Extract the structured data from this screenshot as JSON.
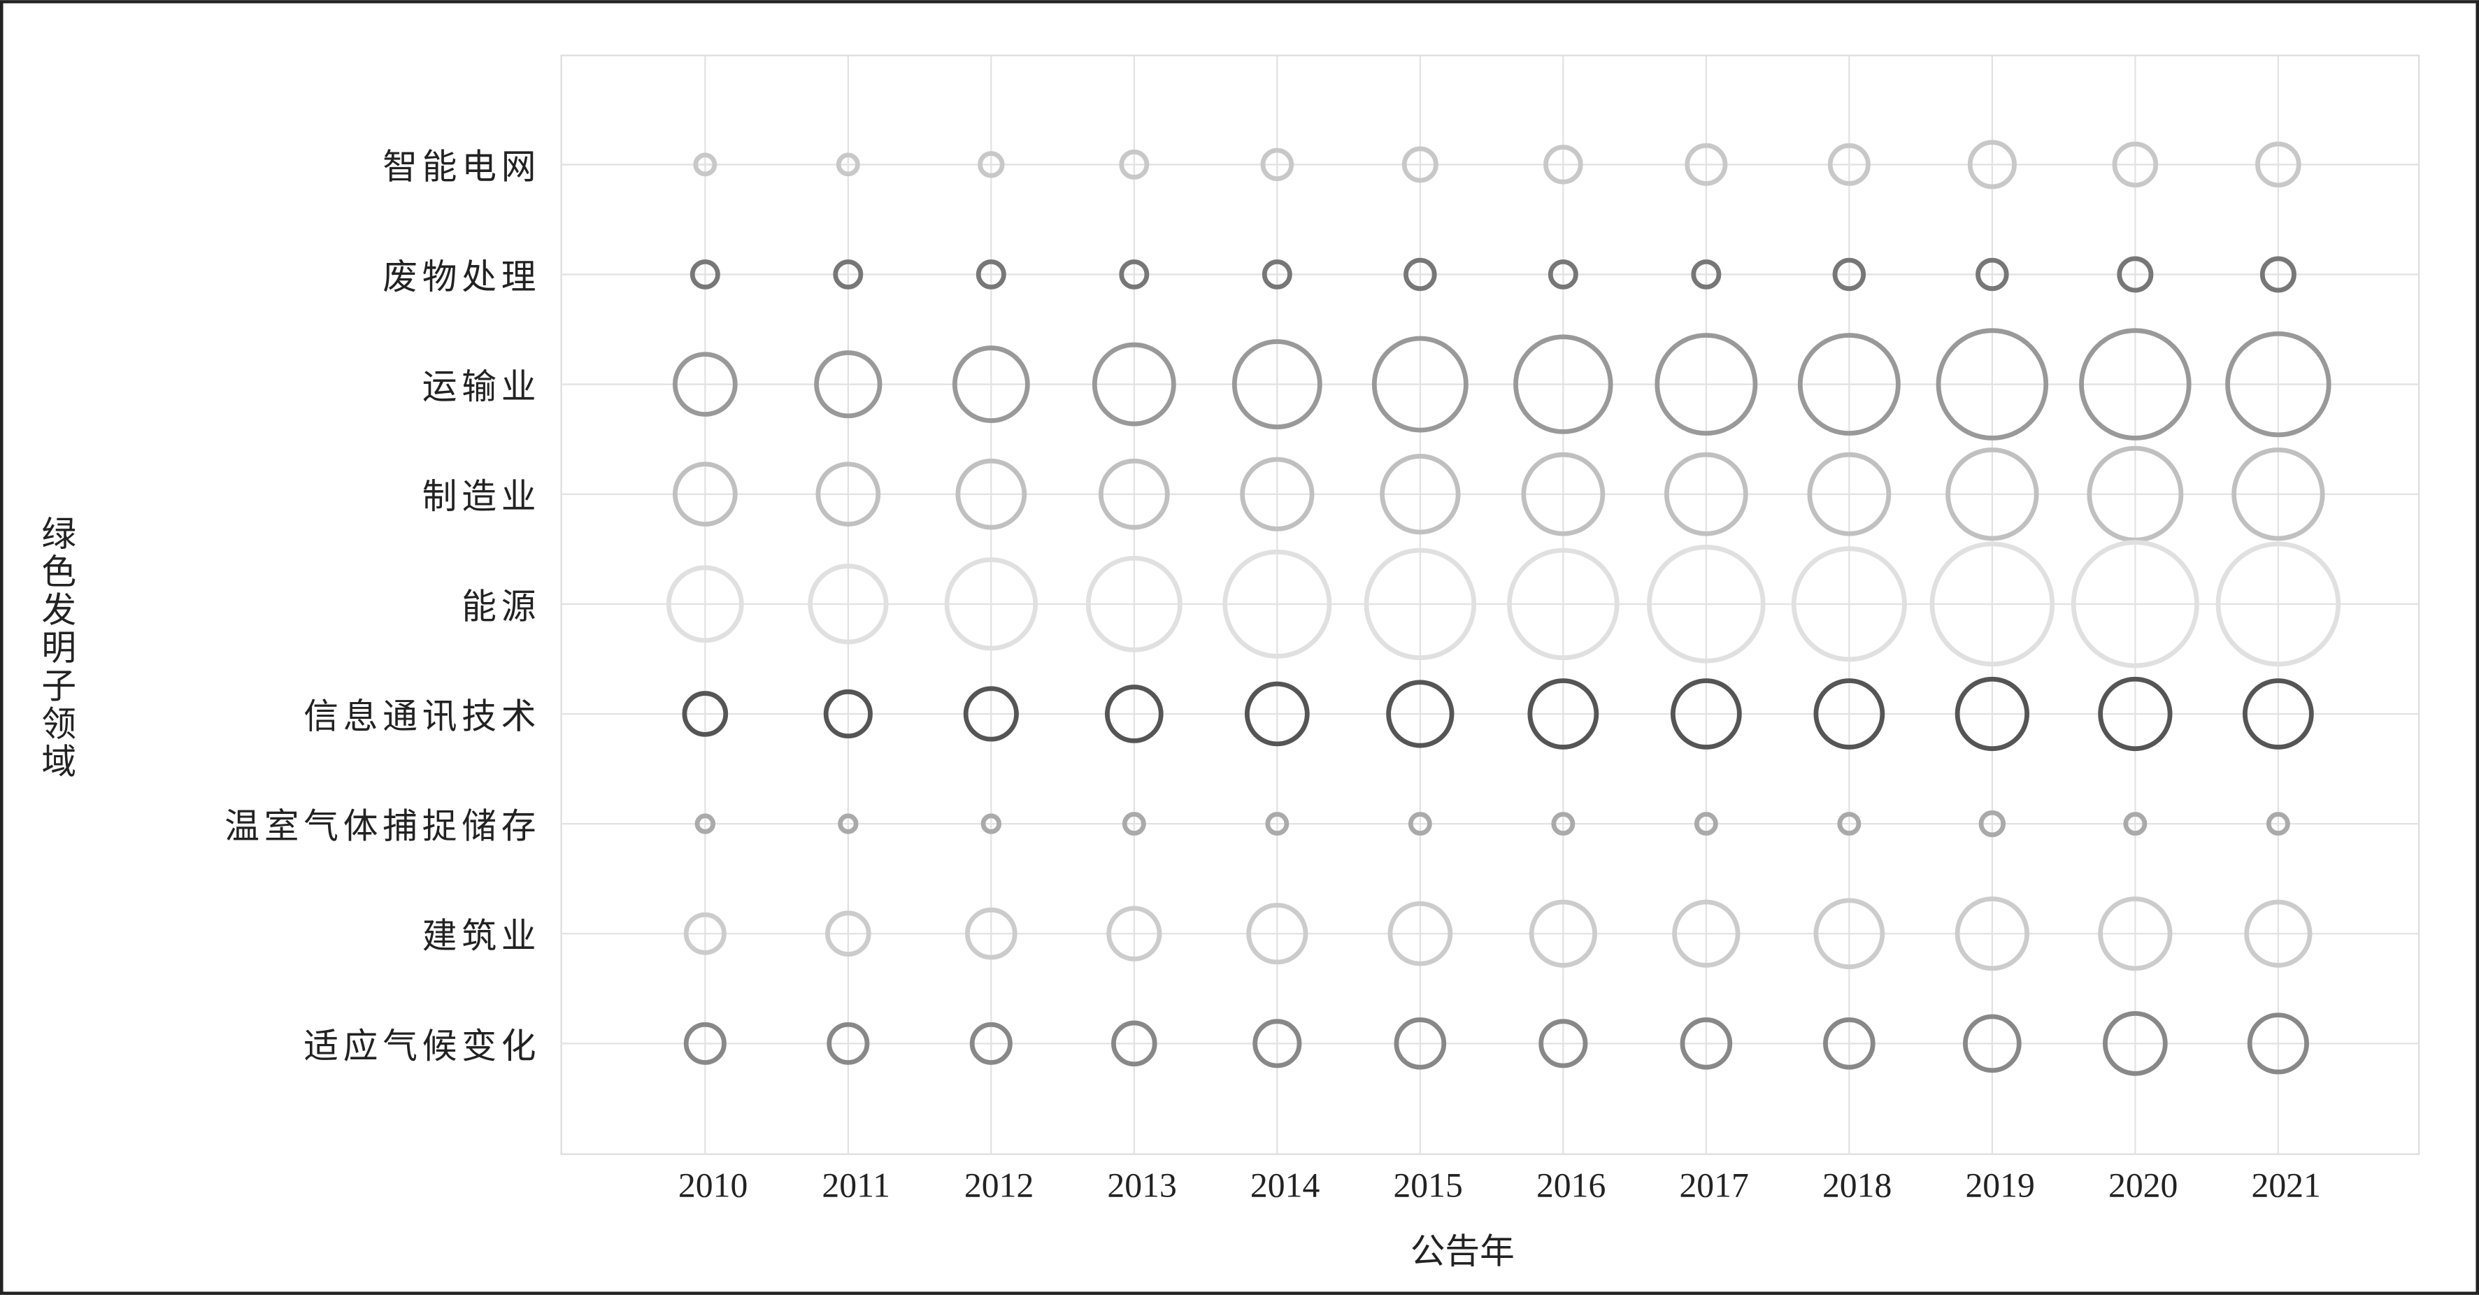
{
  "chart_data": {
    "type": "bubble",
    "x_label": "公告年",
    "y_label": "绿色发明子领域",
    "categories": [
      "2010",
      "2011",
      "2012",
      "2013",
      "2014",
      "2015",
      "2016",
      "2017",
      "2018",
      "2019",
      "2020",
      "2021"
    ],
    "series": [
      {
        "name": "智能电网",
        "color": "#c8c8c8",
        "values": [
          6,
          6,
          7,
          8,
          9,
          10,
          11,
          12,
          12,
          14,
          13,
          13
        ]
      },
      {
        "name": "废物处理",
        "color": "#777777",
        "values": [
          8,
          8,
          8,
          8,
          8,
          9,
          8,
          8,
          9,
          9,
          10,
          10
        ]
      },
      {
        "name": "运输业",
        "color": "#999999",
        "values": [
          19,
          20,
          23,
          25,
          27,
          29,
          30,
          31,
          31,
          34,
          34,
          32
        ]
      },
      {
        "name": "制造业",
        "color": "#c0c0c0",
        "values": [
          19,
          19,
          21,
          21,
          22,
          24,
          25,
          25,
          25,
          28,
          29,
          28
        ]
      },
      {
        "name": "能源",
        "color": "#e0e0e0",
        "values": [
          23,
          24,
          28,
          29,
          33,
          34,
          34,
          36,
          35,
          38,
          39,
          38
        ]
      },
      {
        "name": "信息通讯技术",
        "color": "#555555",
        "values": [
          13,
          14,
          16,
          17,
          19,
          20,
          21,
          21,
          21,
          22,
          22,
          21
        ]
      },
      {
        "name": "温室气体捕捉储存",
        "color": "#aaaaaa",
        "values": [
          5,
          5,
          5,
          6,
          6,
          6,
          6,
          6,
          6,
          7,
          6,
          6
        ]
      },
      {
        "name": "建筑业",
        "color": "#cccccc",
        "values": [
          12,
          13,
          15,
          16,
          18,
          19,
          20,
          20,
          21,
          22,
          22,
          20
        ]
      },
      {
        "name": "适应气候变化",
        "color": "#888888",
        "values": [
          12,
          12,
          12,
          13,
          14,
          15,
          14,
          15,
          15,
          17,
          19,
          18
        ]
      }
    ]
  }
}
